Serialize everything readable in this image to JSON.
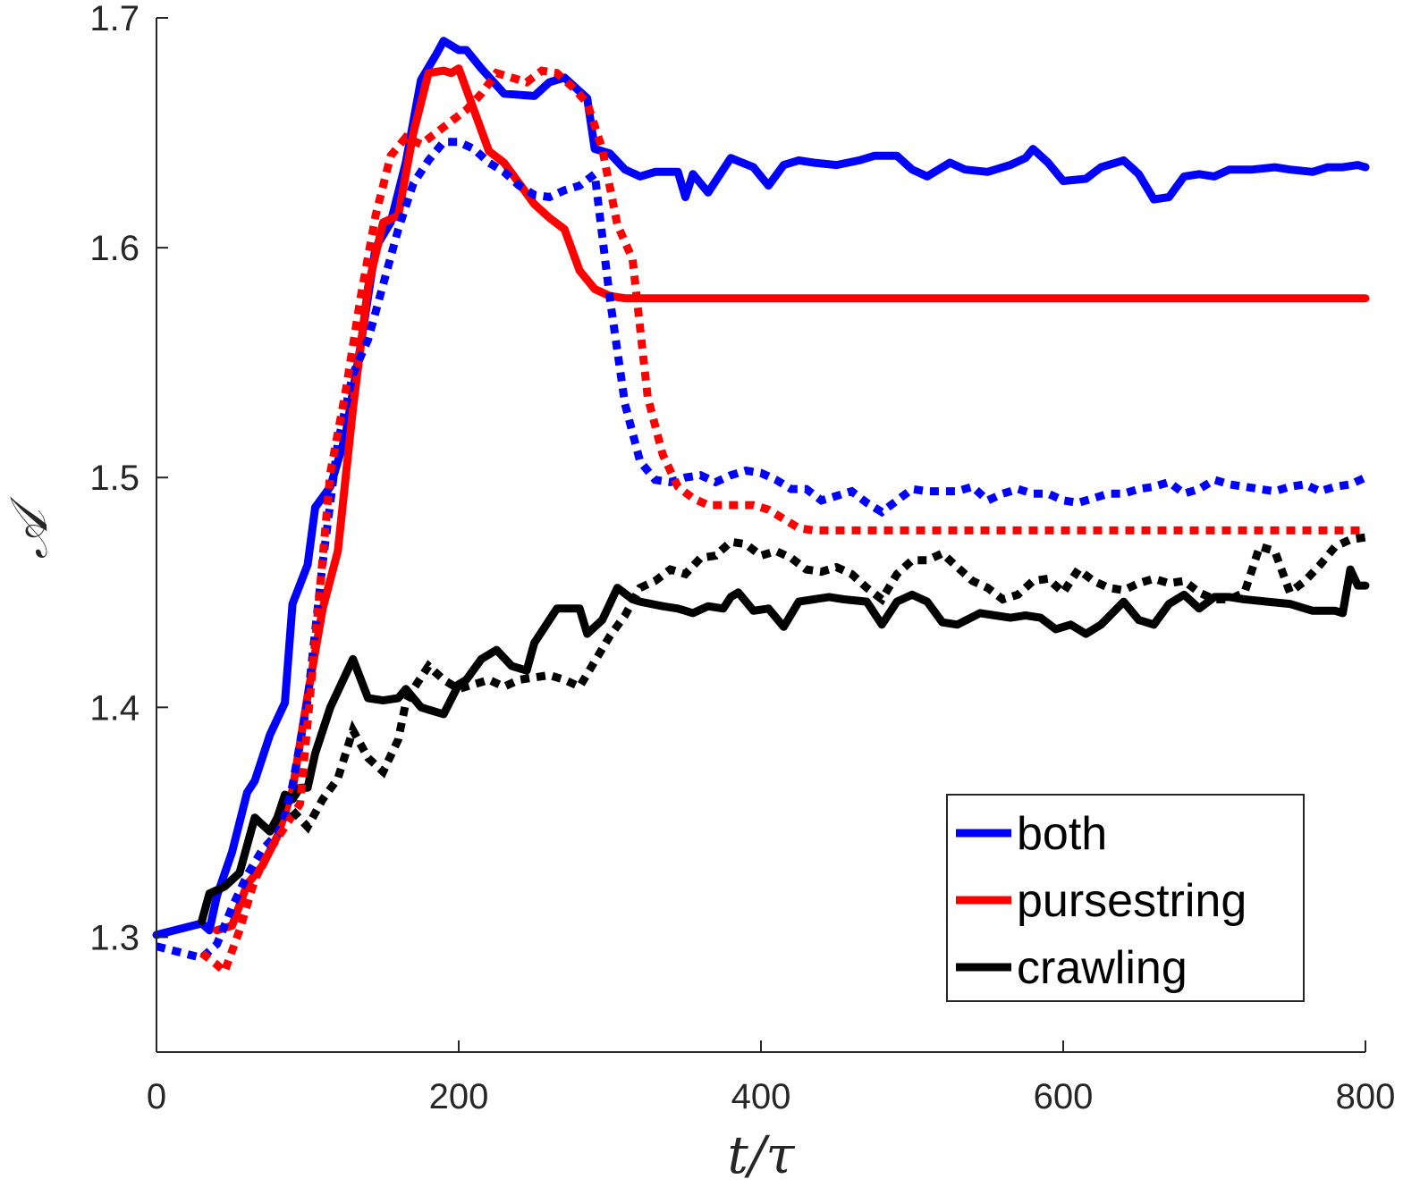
{
  "chart_data": {
    "type": "line",
    "title": "",
    "xlabel": "t/τ",
    "ylabel": "𝒜",
    "xlim": [
      0,
      800
    ],
    "ylim": [
      1.25,
      1.7
    ],
    "xticks": [
      0,
      200,
      400,
      600,
      800
    ],
    "xtick_labels": [
      "0",
      "200",
      "400",
      "600",
      "800"
    ],
    "yticks": [
      1.3,
      1.4,
      1.5,
      1.6,
      1.7
    ],
    "ytick_labels": [
      "1.3",
      "1.4",
      "1.5",
      "1.6",
      "1.7"
    ],
    "grid": false,
    "legend_position": "bottom-right",
    "legend": [
      {
        "label": "both",
        "color": "#0000ff"
      },
      {
        "label": "pursestring",
        "color": "#ff0000"
      },
      {
        "label": "crawling",
        "color": "#000000"
      }
    ],
    "series": [
      {
        "legend": "both",
        "style": "solid",
        "color": "#0000ff",
        "x": [
          0,
          30,
          35,
          40,
          50,
          60,
          65,
          75,
          85,
          90,
          100,
          105,
          115,
          125,
          135,
          145,
          155,
          165,
          175,
          185,
          190,
          200,
          205,
          215,
          230,
          250,
          260,
          270,
          285,
          290,
          300,
          310,
          320,
          330,
          345,
          350,
          355,
          365,
          380,
          395,
          405,
          415,
          425,
          435,
          450,
          465,
          475,
          490,
          500,
          510,
          525,
          535,
          550,
          565,
          575,
          580,
          590,
          600,
          615,
          625,
          640,
          650,
          660,
          670,
          680,
          690,
          700,
          710,
          725,
          740,
          750,
          765,
          775,
          785,
          795,
          800
        ],
        "y": [
          1.301,
          1.306,
          1.303,
          1.318,
          1.337,
          1.363,
          1.368,
          1.388,
          1.402,
          1.445,
          1.462,
          1.487,
          1.496,
          1.518,
          1.557,
          1.6,
          1.611,
          1.637,
          1.673,
          1.684,
          1.69,
          1.686,
          1.686,
          1.678,
          1.667,
          1.666,
          1.672,
          1.674,
          1.665,
          1.643,
          1.641,
          1.634,
          1.631,
          1.633,
          1.633,
          1.622,
          1.632,
          1.624,
          1.639,
          1.635,
          1.627,
          1.636,
          1.638,
          1.637,
          1.636,
          1.638,
          1.64,
          1.64,
          1.634,
          1.631,
          1.637,
          1.634,
          1.633,
          1.636,
          1.639,
          1.643,
          1.637,
          1.629,
          1.63,
          1.635,
          1.638,
          1.632,
          1.621,
          1.622,
          1.631,
          1.632,
          1.631,
          1.634,
          1.634,
          1.635,
          1.634,
          1.633,
          1.635,
          1.635,
          1.636,
          1.635
        ]
      },
      {
        "legend": "pursestring",
        "style": "solid",
        "color": "#ff0000",
        "x": [
          40,
          50,
          60,
          70,
          80,
          90,
          100,
          110,
          120,
          130,
          140,
          150,
          160,
          170,
          180,
          190,
          195,
          200,
          210,
          220,
          230,
          240,
          250,
          260,
          270,
          280,
          290,
          300,
          310,
          330,
          400,
          500,
          600,
          700,
          800
        ],
        "y": [
          1.303,
          1.305,
          1.323,
          1.331,
          1.344,
          1.364,
          1.405,
          1.443,
          1.468,
          1.53,
          1.583,
          1.611,
          1.614,
          1.65,
          1.676,
          1.677,
          1.676,
          1.678,
          1.66,
          1.642,
          1.637,
          1.628,
          1.619,
          1.613,
          1.608,
          1.59,
          1.582,
          1.579,
          1.578,
          1.578,
          1.578,
          1.578,
          1.578,
          1.578,
          1.578
        ]
      },
      {
        "legend": "crawling",
        "style": "solid",
        "color": "#000000",
        "x": [
          30,
          35,
          45,
          55,
          65,
          70,
          75,
          80,
          85,
          90,
          95,
          100,
          105,
          115,
          130,
          140,
          150,
          160,
          165,
          175,
          180,
          190,
          200,
          205,
          215,
          225,
          235,
          245,
          250,
          265,
          270,
          280,
          285,
          295,
          305,
          315,
          320,
          335,
          345,
          355,
          365,
          375,
          380,
          385,
          395,
          405,
          415,
          425,
          435,
          445,
          455,
          470,
          480,
          490,
          500,
          510,
          520,
          530,
          545,
          555,
          565,
          575,
          585,
          595,
          605,
          615,
          625,
          640,
          650,
          660,
          670,
          680,
          690,
          700,
          710,
          720,
          735,
          750,
          765,
          780,
          785,
          790,
          795,
          800
        ],
        "y": [
          1.307,
          1.319,
          1.322,
          1.328,
          1.352,
          1.349,
          1.346,
          1.352,
          1.362,
          1.36,
          1.365,
          1.365,
          1.38,
          1.4,
          1.421,
          1.404,
          1.403,
          1.404,
          1.408,
          1.4,
          1.399,
          1.397,
          1.41,
          1.412,
          1.421,
          1.425,
          1.418,
          1.416,
          1.428,
          1.443,
          1.443,
          1.443,
          1.432,
          1.438,
          1.452,
          1.447,
          1.446,
          1.444,
          1.443,
          1.441,
          1.444,
          1.443,
          1.448,
          1.45,
          1.442,
          1.443,
          1.435,
          1.446,
          1.447,
          1.448,
          1.447,
          1.446,
          1.436,
          1.446,
          1.449,
          1.446,
          1.437,
          1.436,
          1.441,
          1.44,
          1.439,
          1.44,
          1.439,
          1.434,
          1.436,
          1.432,
          1.436,
          1.446,
          1.438,
          1.436,
          1.445,
          1.449,
          1.443,
          1.448,
          1.448,
          1.447,
          1.446,
          1.445,
          1.442,
          1.442,
          1.441,
          1.46,
          1.453,
          1.453
        ]
      },
      {
        "legend": "both",
        "style": "dotted",
        "color": "#0000ff",
        "x": [
          0,
          30,
          40,
          50,
          60,
          70,
          80,
          85,
          90,
          100,
          110,
          120,
          130,
          140,
          150,
          160,
          170,
          180,
          190,
          200,
          210,
          220,
          230,
          240,
          250,
          260,
          270,
          280,
          290,
          300,
          310,
          320,
          330,
          340,
          350,
          360,
          370,
          380,
          390,
          400,
          410,
          420,
          430,
          440,
          450,
          460,
          470,
          480,
          490,
          500,
          510,
          520,
          530,
          540,
          550,
          560,
          570,
          580,
          590,
          600,
          610,
          620,
          630,
          640,
          650,
          660,
          670,
          680,
          690,
          700,
          710,
          720,
          730,
          740,
          750,
          760,
          770,
          780,
          790,
          800
        ],
        "y": [
          1.296,
          1.291,
          1.297,
          1.313,
          1.327,
          1.338,
          1.345,
          1.353,
          1.366,
          1.403,
          1.463,
          1.515,
          1.545,
          1.56,
          1.584,
          1.608,
          1.628,
          1.638,
          1.646,
          1.646,
          1.643,
          1.637,
          1.633,
          1.627,
          1.623,
          1.622,
          1.625,
          1.627,
          1.632,
          1.578,
          1.532,
          1.507,
          1.499,
          1.498,
          1.5,
          1.501,
          1.498,
          1.501,
          1.503,
          1.502,
          1.499,
          1.495,
          1.495,
          1.49,
          1.492,
          1.494,
          1.489,
          1.485,
          1.49,
          1.495,
          1.494,
          1.494,
          1.494,
          1.496,
          1.49,
          1.493,
          1.495,
          1.493,
          1.493,
          1.49,
          1.489,
          1.491,
          1.493,
          1.493,
          1.495,
          1.496,
          1.498,
          1.493,
          1.495,
          1.499,
          1.497,
          1.496,
          1.495,
          1.494,
          1.496,
          1.497,
          1.494,
          1.496,
          1.497,
          1.5
        ]
      },
      {
        "legend": "pursestring",
        "style": "dotted",
        "color": "#ff0000",
        "x": [
          30,
          40,
          45,
          55,
          65,
          75,
          85,
          95,
          105,
          115,
          125,
          135,
          145,
          155,
          165,
          175,
          185,
          195,
          205,
          215,
          225,
          235,
          245,
          255,
          265,
          275,
          285,
          295,
          305,
          315,
          325,
          335,
          345,
          355,
          365,
          375,
          385,
          395,
          405,
          415,
          425,
          435,
          450,
          500,
          600,
          700,
          800
        ],
        "y": [
          1.293,
          1.288,
          1.285,
          1.303,
          1.325,
          1.338,
          1.348,
          1.358,
          1.429,
          1.502,
          1.537,
          1.578,
          1.614,
          1.64,
          1.648,
          1.645,
          1.65,
          1.655,
          1.66,
          1.667,
          1.676,
          1.674,
          1.672,
          1.677,
          1.676,
          1.67,
          1.663,
          1.643,
          1.61,
          1.595,
          1.535,
          1.51,
          1.496,
          1.491,
          1.488,
          1.488,
          1.488,
          1.488,
          1.486,
          1.482,
          1.478,
          1.477,
          1.477,
          1.477,
          1.477,
          1.477,
          1.477
        ]
      },
      {
        "legend": "crawling",
        "style": "dotted",
        "color": "#000000",
        "x": [
          90,
          100,
          110,
          120,
          130,
          140,
          150,
          160,
          165,
          170,
          180,
          190,
          200,
          210,
          220,
          230,
          240,
          250,
          260,
          270,
          280,
          290,
          300,
          310,
          320,
          330,
          340,
          350,
          360,
          370,
          380,
          390,
          400,
          410,
          420,
          430,
          440,
          450,
          460,
          470,
          480,
          490,
          500,
          510,
          520,
          530,
          540,
          550,
          560,
          570,
          580,
          590,
          600,
          610,
          620,
          630,
          640,
          650,
          660,
          670,
          680,
          690,
          700,
          710,
          720,
          730,
          740,
          750,
          760,
          770,
          780,
          790,
          800
        ],
        "y": [
          1.355,
          1.348,
          1.36,
          1.369,
          1.39,
          1.378,
          1.372,
          1.386,
          1.402,
          1.408,
          1.418,
          1.412,
          1.408,
          1.41,
          1.412,
          1.409,
          1.412,
          1.413,
          1.414,
          1.412,
          1.409,
          1.42,
          1.431,
          1.44,
          1.452,
          1.455,
          1.46,
          1.458,
          1.465,
          1.466,
          1.472,
          1.471,
          1.466,
          1.468,
          1.465,
          1.46,
          1.459,
          1.461,
          1.458,
          1.452,
          1.447,
          1.458,
          1.464,
          1.464,
          1.467,
          1.461,
          1.455,
          1.452,
          1.447,
          1.449,
          1.455,
          1.456,
          1.45,
          1.46,
          1.455,
          1.452,
          1.451,
          1.454,
          1.456,
          1.454,
          1.455,
          1.45,
          1.447,
          1.447,
          1.45,
          1.47,
          1.468,
          1.45,
          1.455,
          1.462,
          1.47,
          1.473,
          1.474
        ]
      }
    ]
  }
}
